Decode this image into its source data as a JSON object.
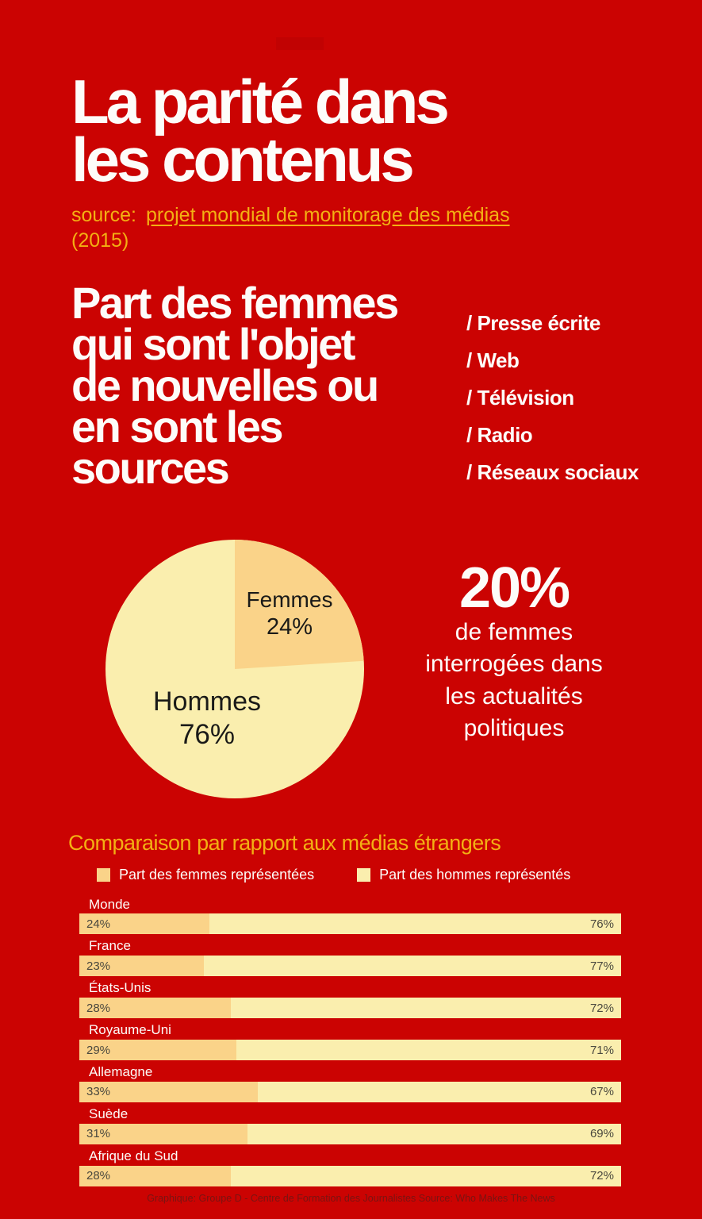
{
  "colors": {
    "background": "#cb0302",
    "accent_gold": "#f3b013",
    "text_white": "#fdfcf9",
    "pie_text": "#1a1a18",
    "bar_value_text": "#4a483e",
    "footer_text": "#7a1412",
    "femmes_segment": "#fad389",
    "hommes_segment": "#faeeae"
  },
  "header": {
    "title_line1": "La parité dans",
    "title_line2": "les contenus",
    "source_prefix": "source:",
    "source_link_text": "projet mondial de monitorage des médias",
    "source_year": "(2015)"
  },
  "intro": {
    "heading_lines": [
      "Part des femmes",
      "qui sont l'objet",
      "de nouvelles ou",
      "en sont les",
      "sources"
    ],
    "media_types": [
      "/ Presse écrite",
      "/ Web",
      "/ Télévision",
      "/ Radio",
      "/ Réseaux sociaux"
    ]
  },
  "stat": {
    "number": "20%",
    "lines": [
      "de femmes",
      "interrogées dans",
      "les actualités",
      "politiques"
    ]
  },
  "comparison": {
    "title": "Comparaison par rapport aux médias étrangers"
  },
  "footer": {
    "credit": "Graphique: Groupe D - Centre de Formation des Journalistes Source: Who Makes The News"
  },
  "chart_data": [
    {
      "type": "pie",
      "labels": [
        "Femmes",
        "Hommes"
      ],
      "values": [
        24,
        76
      ],
      "display_values": [
        "24%",
        "76%"
      ],
      "unit": "%",
      "colors": [
        "#fad389",
        "#faeeae"
      ],
      "text_color": "#1a1a18",
      "start_angle_deg": 0,
      "direction": "clockwise"
    },
    {
      "type": "bar",
      "orientation": "horizontal",
      "stacked": true,
      "unit": "%",
      "title": "Comparaison par rapport aux médias étrangers",
      "categories": [
        "Monde",
        "France",
        "États-Unis",
        "Royaume-Uni",
        "Allemagne",
        "Suède",
        "Afrique du Sud"
      ],
      "series": [
        {
          "name": "Part des femmes représentées",
          "values": [
            24,
            23,
            28,
            29,
            33,
            31,
            28
          ],
          "color": "#fad389"
        },
        {
          "name": "Part des hommes représentés",
          "values": [
            76,
            77,
            72,
            71,
            67,
            69,
            72
          ],
          "color": "#faeeae"
        }
      ],
      "xlim": [
        0,
        100
      ]
    }
  ]
}
